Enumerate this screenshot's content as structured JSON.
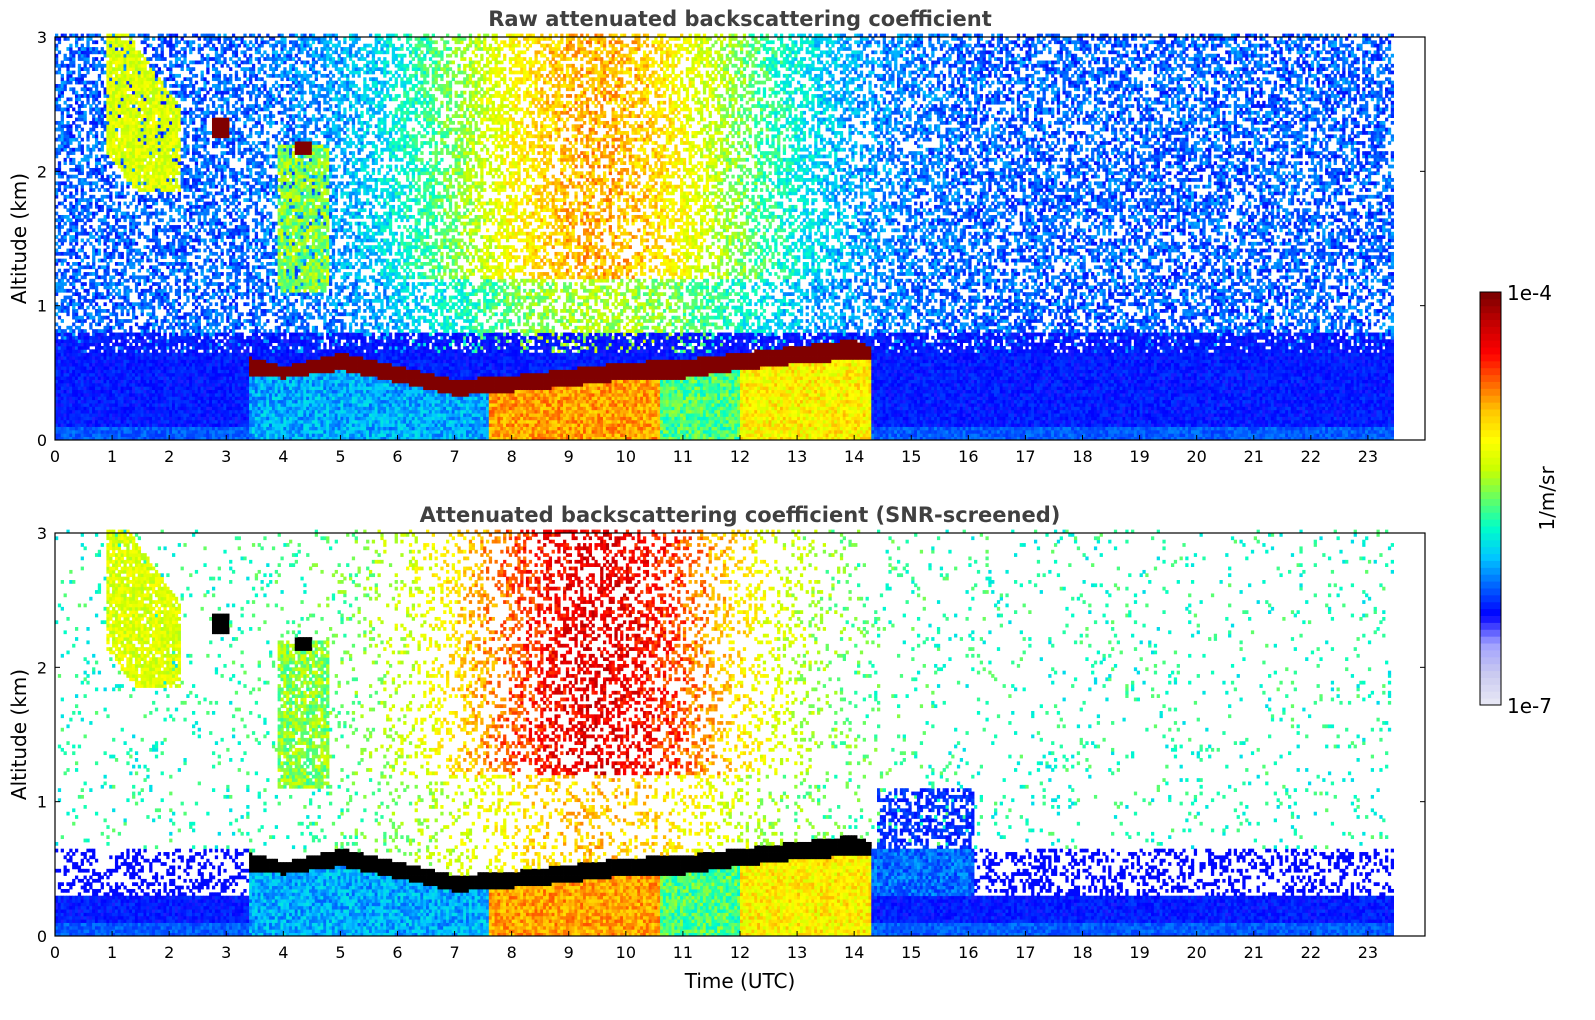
{
  "chart_data": [
    {
      "type": "heatmap",
      "title": "Raw attenuated backscattering coefficient",
      "xlabel": "",
      "ylabel": "Altitude (km)",
      "xlim": [
        0,
        24
      ],
      "ylim": [
        0,
        3
      ],
      "xticks": [
        "0",
        "1",
        "2",
        "3",
        "4",
        "5",
        "6",
        "7",
        "8",
        "9",
        "10",
        "11",
        "12",
        "13",
        "14",
        "15",
        "16",
        "17",
        "18",
        "19",
        "20",
        "21",
        "22",
        "23"
      ],
      "yticks": [
        "0",
        "1",
        "2",
        "3"
      ],
      "data_end_hour": 23.45,
      "screened": false,
      "cloud_layer": {
        "start_hour": 3.4,
        "end_hour": 14.3,
        "top_km": [
          [
            3.4,
            0.62
          ],
          [
            4.0,
            0.55
          ],
          [
            5.0,
            0.65
          ],
          [
            6.0,
            0.55
          ],
          [
            7.0,
            0.45
          ],
          [
            8.0,
            0.48
          ],
          [
            9.0,
            0.53
          ],
          [
            10.0,
            0.58
          ],
          [
            11.0,
            0.6
          ],
          [
            12.0,
            0.65
          ],
          [
            13.0,
            0.7
          ],
          [
            14.0,
            0.75
          ],
          [
            14.3,
            0.7
          ]
        ],
        "bottom_km": [
          [
            3.4,
            0.48
          ],
          [
            4.0,
            0.46
          ],
          [
            5.0,
            0.52
          ],
          [
            6.0,
            0.43
          ],
          [
            7.0,
            0.33
          ],
          [
            8.0,
            0.36
          ],
          [
            9.0,
            0.4
          ],
          [
            10.0,
            0.45
          ],
          [
            11.0,
            0.46
          ],
          [
            12.0,
            0.52
          ],
          [
            13.0,
            0.57
          ],
          [
            14.0,
            0.6
          ],
          [
            14.3,
            0.6
          ]
        ]
      },
      "features": [
        {
          "name": "high-cirrus-streak",
          "start_hour": 0.9,
          "end_hour": 2.2,
          "altitude_km": [
            1.9,
            3.0
          ]
        },
        {
          "name": "cloud-patch-3h",
          "hour": 2.9,
          "altitude_km": 2.32
        },
        {
          "name": "cloud-patch-4h",
          "hour": 4.3,
          "altitude_km": 2.18
        },
        {
          "name": "fall-streak-4-5h",
          "start_hour": 3.9,
          "end_hour": 4.8,
          "altitude_km": [
            1.1,
            2.2
          ]
        },
        {
          "name": "strong-boundary-layer",
          "start_hour": 7.6,
          "end_hour": 14.4,
          "altitude_km": [
            0,
            0.45
          ]
        }
      ]
    },
    {
      "type": "heatmap",
      "title": "Attenuated backscattering coefficient (SNR-screened)",
      "xlabel": "Time (UTC)",
      "ylabel": "Altitude (km)",
      "xlim": [
        0,
        24
      ],
      "ylim": [
        0,
        3
      ],
      "xticks": [
        "0",
        "1",
        "2",
        "3",
        "4",
        "5",
        "6",
        "7",
        "8",
        "9",
        "10",
        "11",
        "12",
        "13",
        "14",
        "15",
        "16",
        "17",
        "18",
        "19",
        "20",
        "21",
        "22",
        "23"
      ],
      "yticks": [
        "0",
        "1",
        "2",
        "3"
      ],
      "data_end_hour": 23.45,
      "screened": true,
      "saturated_color": "#000000"
    }
  ],
  "colorbar": {
    "min_label": "1e-7",
    "max_label": "1e-4",
    "unit_label": "1/m/sr",
    "colormap": [
      "#e6e6f5",
      "#c8c8f0",
      "#a0a0ff",
      "#0000ff",
      "#0064ff",
      "#00c8ff",
      "#00ffc8",
      "#64ff64",
      "#c8ff00",
      "#ffff00",
      "#ffc800",
      "#ff6400",
      "#ff0000",
      "#c80000",
      "#800000"
    ]
  }
}
